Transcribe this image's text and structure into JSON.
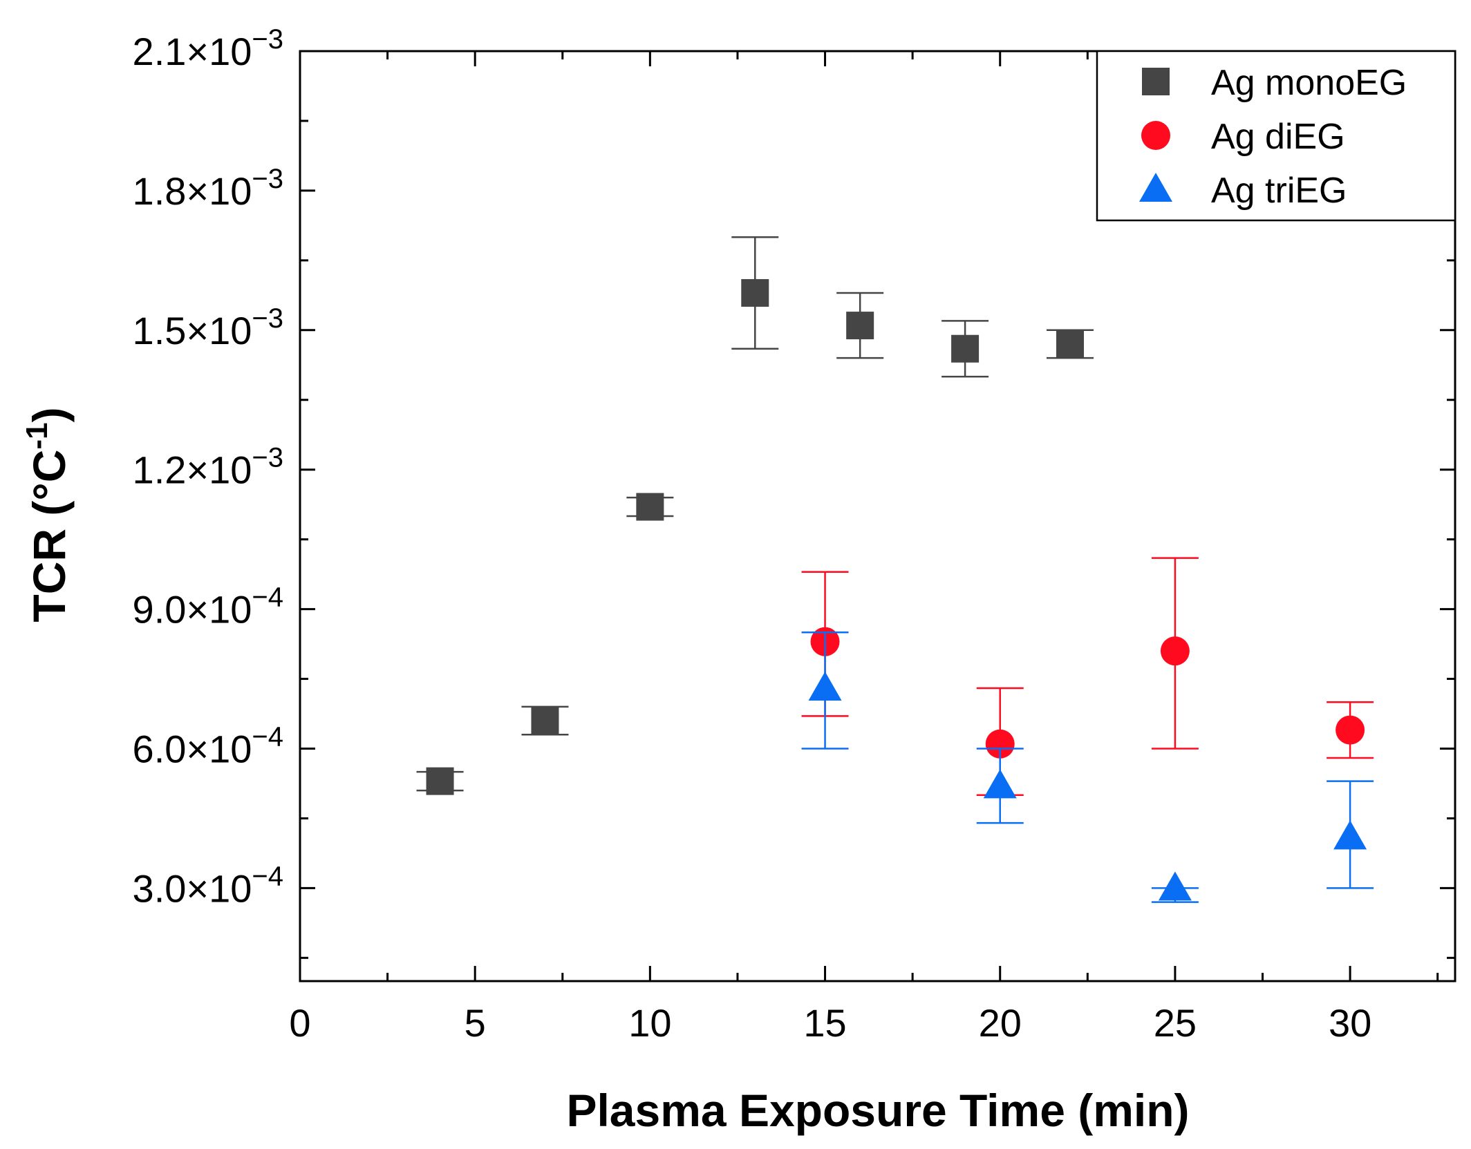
{
  "chart_data": {
    "type": "scatter",
    "title": "",
    "xlabel": "Plasma Exposure Time (min)",
    "ylabel": "TCR (°C-1)",
    "ylabel_parts": {
      "main": "TCR (°C",
      "sup": "-1",
      "close": ")"
    },
    "xlim": [
      0,
      33
    ],
    "ylim": [
      0.0001,
      0.0021
    ],
    "x_ticks": [
      0,
      5,
      10,
      15,
      20,
      25,
      30
    ],
    "x_tick_labels": [
      "0",
      "5",
      "10",
      "15",
      "20",
      "25",
      "30"
    ],
    "y_ticks": [
      0.0003,
      0.0006,
      0.0009,
      0.0012,
      0.0015,
      0.0018,
      0.0021
    ],
    "y_tick_labels": [
      {
        "mantissa": "3.0×10",
        "exponent": "−4"
      },
      {
        "mantissa": "6.0×10",
        "exponent": "−4"
      },
      {
        "mantissa": "9.0×10",
        "exponent": "−4"
      },
      {
        "mantissa": "1.2×10",
        "exponent": "−3"
      },
      {
        "mantissa": "1.5×10",
        "exponent": "−3"
      },
      {
        "mantissa": "1.8×10",
        "exponent": "−3"
      },
      {
        "mantissa": "2.1×10",
        "exponent": "−3"
      }
    ],
    "grid": false,
    "legend_position": "top-right",
    "series": [
      {
        "name": "Ag monoEG",
        "marker": "square",
        "color": "#454545",
        "points": [
          {
            "x": 4,
            "y": 0.00053,
            "err_low": 0.00051,
            "err_high": 0.00055
          },
          {
            "x": 7,
            "y": 0.00066,
            "err_low": 0.00063,
            "err_high": 0.00069
          },
          {
            "x": 10,
            "y": 0.00112,
            "err_low": 0.0011,
            "err_high": 0.00114
          },
          {
            "x": 13,
            "y": 0.00158,
            "err_low": 0.00146,
            "err_high": 0.0017
          },
          {
            "x": 16,
            "y": 0.00151,
            "err_low": 0.00144,
            "err_high": 0.00158
          },
          {
            "x": 19,
            "y": 0.00146,
            "err_low": 0.0014,
            "err_high": 0.00152
          },
          {
            "x": 22,
            "y": 0.00147,
            "err_low": 0.00144,
            "err_high": 0.0015
          }
        ]
      },
      {
        "name": "Ag diEG",
        "marker": "circle",
        "color": "#ff0a1e",
        "points": [
          {
            "x": 15,
            "y": 0.00083,
            "err_low": 0.00067,
            "err_high": 0.00098
          },
          {
            "x": 20,
            "y": 0.00061,
            "err_low": 0.0005,
            "err_high": 0.00073
          },
          {
            "x": 25,
            "y": 0.00081,
            "err_low": 0.0006,
            "err_high": 0.00101
          },
          {
            "x": 30,
            "y": 0.00064,
            "err_low": 0.00058,
            "err_high": 0.0007
          }
        ]
      },
      {
        "name": "Ag triEG",
        "marker": "triangle",
        "color": "#0a6ef5",
        "points": [
          {
            "x": 15,
            "y": 0.00073,
            "err_low": 0.0006,
            "err_high": 0.00085
          },
          {
            "x": 20,
            "y": 0.00052,
            "err_low": 0.00044,
            "err_high": 0.0006
          },
          {
            "x": 25,
            "y": 0.0003,
            "err_low": 0.00027,
            "err_high": 0.0003
          },
          {
            "x": 30,
            "y": 0.00041,
            "err_low": 0.0003,
            "err_high": 0.00053
          }
        ]
      }
    ]
  }
}
